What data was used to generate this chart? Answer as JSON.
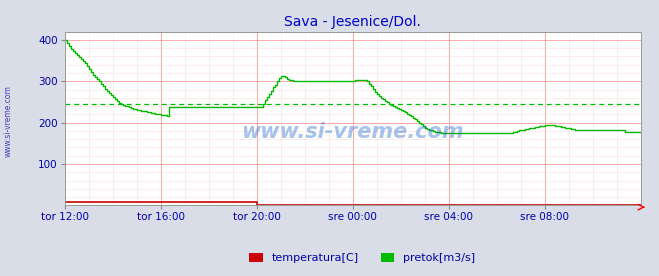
{
  "title": "Sava - Jesenice/Dol.",
  "title_color": "#0000cc",
  "bg_color": "#d8dde8",
  "plot_bg_color": "#ffffff",
  "grid_color_major": "#ff9999",
  "grid_color_minor": "#ffdddd",
  "tick_label_color": "#0000aa",
  "watermark": "www.si-vreme.com",
  "watermark_color": "#0055cc",
  "line_color_pretok": "#00bb00",
  "line_color_temp": "#cc0000",
  "avg_line_color": "#00bb00",
  "avg_line_value": 245,
  "x_tick_labels": [
    "tor 12:00",
    "tor 16:00",
    "tor 20:00",
    "sre 00:00",
    "sre 04:00",
    "sre 08:00"
  ],
  "x_tick_positions": [
    0,
    48,
    96,
    144,
    192,
    240
  ],
  "ylim": [
    0,
    420
  ],
  "yticks": [
    100,
    200,
    300,
    400
  ],
  "xlim": [
    0,
    288
  ],
  "pretok_data": [
    400,
    393,
    386,
    378,
    372,
    368,
    364,
    358,
    353,
    348,
    343,
    337,
    330,
    323,
    316,
    310,
    305,
    300,
    294,
    288,
    282,
    276,
    271,
    267,
    262,
    257,
    252,
    248,
    245,
    243,
    241,
    239,
    237,
    235,
    234,
    232,
    231,
    230,
    229,
    228,
    227,
    226,
    225,
    224,
    223,
    222,
    221,
    220,
    219,
    218,
    218,
    217,
    237,
    237,
    237,
    237,
    237,
    237,
    237,
    237,
    237,
    237,
    237,
    237,
    237,
    237,
    237,
    237,
    237,
    237,
    237,
    237,
    237,
    237,
    237,
    237,
    237,
    237,
    237,
    237,
    237,
    237,
    237,
    237,
    237,
    237,
    237,
    237,
    237,
    237,
    237,
    237,
    237,
    237,
    237,
    237,
    237,
    237,
    237,
    245,
    255,
    263,
    270,
    277,
    285,
    292,
    300,
    308,
    312,
    313,
    310,
    306,
    304,
    302,
    301,
    300,
    300,
    300,
    300,
    300,
    300,
    300,
    300,
    300,
    300,
    300,
    300,
    300,
    300,
    300,
    300,
    300,
    300,
    300,
    300,
    300,
    300,
    300,
    300,
    300,
    300,
    300,
    300,
    300,
    300,
    302,
    302,
    303,
    303,
    303,
    302,
    300,
    294,
    288,
    281,
    273,
    268,
    264,
    260,
    257,
    253,
    249,
    246,
    242,
    240,
    238,
    236,
    234,
    231,
    228,
    225,
    222,
    218,
    215,
    212,
    208,
    205,
    200,
    196,
    192,
    188,
    185,
    183,
    181,
    179,
    178,
    177,
    177,
    176,
    176,
    175,
    175,
    175,
    174,
    174,
    174,
    174,
    174,
    174,
    174,
    174,
    174,
    174,
    174,
    174,
    174,
    174,
    174,
    174,
    174,
    174,
    174,
    174,
    174,
    174,
    174,
    174,
    174,
    174,
    174,
    174,
    174,
    175,
    176,
    177,
    178,
    180,
    181,
    182,
    183,
    184,
    185,
    186,
    187,
    188,
    189,
    190,
    191,
    192,
    193,
    194,
    195,
    195,
    195,
    194,
    193,
    192,
    191,
    190,
    189,
    188,
    187,
    186,
    185,
    184,
    183,
    182,
    181,
    181,
    181,
    181,
    181,
    181,
    181,
    181,
    181,
    181,
    181,
    181,
    181,
    181,
    181,
    181,
    181,
    181,
    181,
    181,
    181,
    181,
    181,
    178,
    178,
    178,
    178,
    178,
    178,
    178,
    178,
    178
  ],
  "temp_data": [
    8,
    8,
    8,
    8,
    8,
    8,
    8,
    8,
    8,
    8,
    8,
    8,
    8,
    8,
    8,
    8,
    8,
    8,
    8,
    8,
    8,
    8,
    8,
    8,
    8,
    8,
    8,
    8,
    8,
    8,
    8,
    8,
    8,
    8,
    8,
    8,
    8,
    8,
    8,
    8,
    8,
    8,
    8,
    8,
    8,
    8,
    8,
    8,
    8,
    8,
    8,
    8,
    8,
    8,
    8,
    8,
    8,
    8,
    8,
    8,
    8,
    8,
    8,
    8,
    8,
    8,
    8,
    8,
    8,
    8,
    8,
    8,
    8,
    8,
    8,
    8,
    8,
    8,
    8,
    8,
    8,
    8,
    8,
    8,
    8,
    8,
    8,
    8,
    8,
    8,
    8,
    8,
    8,
    8,
    8,
    8,
    0,
    0,
    0,
    0,
    0,
    0,
    0,
    0,
    0,
    0,
    0,
    0,
    0,
    0,
    0,
    0,
    0,
    0,
    0,
    0,
    0,
    0,
    0,
    0,
    0,
    0,
    0,
    0,
    0,
    0,
    0,
    0,
    0,
    0,
    0,
    0,
    0,
    0,
    0,
    0,
    0,
    0,
    0,
    0,
    0,
    0,
    0,
    0,
    0,
    0,
    0,
    0,
    0,
    0,
    0,
    0,
    0,
    0,
    0,
    0,
    0,
    0,
    0,
    0,
    0,
    0,
    0,
    0,
    0,
    0,
    0,
    0,
    0,
    0,
    0,
    0,
    0,
    0,
    0,
    0,
    0,
    0,
    0,
    0,
    0,
    0,
    0,
    0,
    0,
    0,
    0,
    0,
    0,
    0,
    0,
    0,
    0,
    0,
    0,
    0,
    0,
    0,
    0,
    0,
    0,
    0,
    0,
    0,
    0,
    0,
    0,
    0,
    0,
    0,
    0,
    0,
    0,
    0,
    0,
    0,
    0,
    0,
    0,
    0,
    0,
    0,
    0,
    0,
    0,
    0,
    0,
    0,
    0,
    0,
    0,
    0,
    0,
    0,
    0,
    0,
    0,
    0,
    0,
    0,
    0,
    0,
    0,
    0,
    0,
    0,
    0,
    0,
    0,
    0,
    0,
    0,
    0,
    0,
    0,
    0,
    0,
    0,
    0,
    0,
    0,
    0,
    0,
    0,
    0,
    0,
    0,
    0,
    0,
    0,
    0,
    0,
    0,
    0,
    0,
    0,
    0,
    0,
    0,
    0,
    0,
    0,
    0,
    0,
    0,
    0,
    0,
    0,
    0
  ],
  "legend": [
    {
      "label": "temperatura[C]",
      "color": "#cc0000"
    },
    {
      "label": "pretok[m3/s]",
      "color": "#00bb00"
    }
  ],
  "left_label": "www.si-vreme.com",
  "left_label_color": "#0000aa"
}
